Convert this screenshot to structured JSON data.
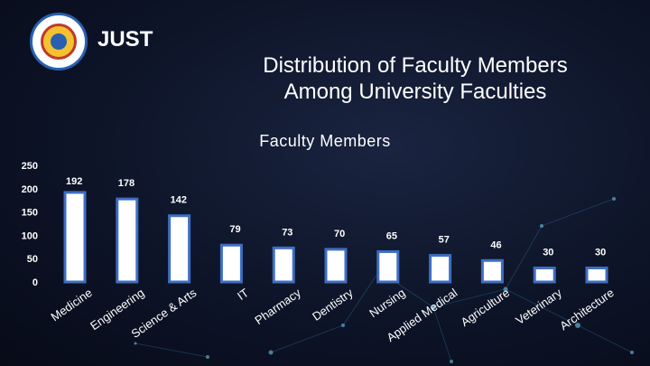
{
  "header": {
    "brand": "JUST",
    "title_line1": "Distribution of Faculty Members",
    "title_line2": "Among University Faculties"
  },
  "colors": {
    "bar_fill": "#ffffff",
    "bar_stroke": "#3f6ec2",
    "text": "#ffffff"
  },
  "chart_data": {
    "type": "bar",
    "title": "Faculty Members",
    "categories": [
      "Medicine",
      "Engineering",
      "Science & Arts",
      "IT",
      "Pharmacy",
      "Dentistry",
      "Nursing",
      "Applied Medical",
      "Agriculture",
      "Veterinary",
      "Architecture"
    ],
    "values": [
      192,
      178,
      142,
      79,
      73,
      70,
      65,
      57,
      46,
      30,
      30
    ],
    "ylim": [
      0,
      250
    ],
    "yticks": [
      0,
      50,
      100,
      150,
      200,
      250
    ],
    "grid": false,
    "legend": "none"
  }
}
